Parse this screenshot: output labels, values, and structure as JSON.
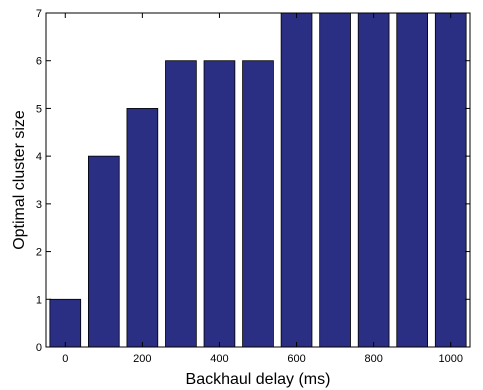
{
  "chart_data": {
    "type": "bar",
    "x": [
      0,
      100,
      200,
      300,
      400,
      500,
      600,
      700,
      800,
      900,
      1000
    ],
    "values": [
      1,
      4,
      5,
      6,
      6,
      6,
      7,
      7,
      7,
      7,
      7
    ],
    "xlabel": "Backhaul delay (ms)",
    "ylabel": "Optimal cluster size",
    "xlim": [
      -50,
      1050
    ],
    "ylim": [
      0,
      7
    ],
    "xticks": [
      0,
      200,
      400,
      600,
      800,
      1000
    ],
    "yticks": [
      0,
      1,
      2,
      3,
      4,
      5,
      6,
      7
    ],
    "bar_width": 80,
    "bar_color": "#2b2f84",
    "grid": false
  }
}
